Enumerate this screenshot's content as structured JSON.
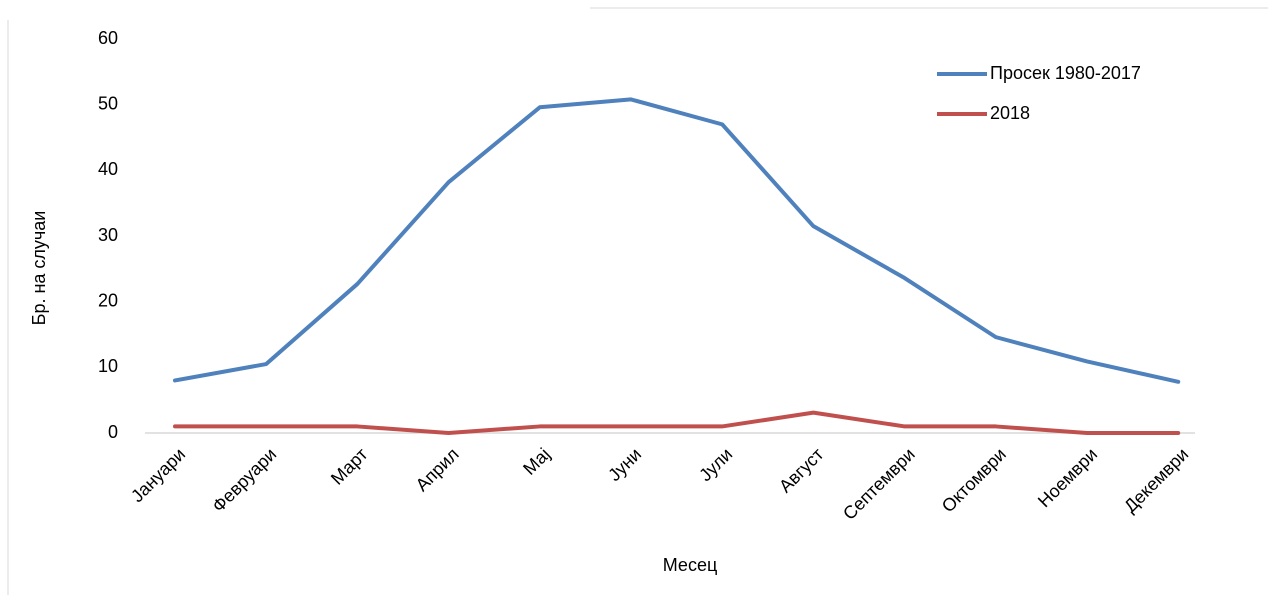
{
  "chart_data": {
    "type": "line",
    "x_label": "Месец",
    "y_label": "Бр. на случаи",
    "categories": [
      "Јануари",
      "Февруари",
      "Март",
      "Април",
      "Мај",
      "Јуни",
      "Јули",
      "Август",
      "Септември",
      "Октомври",
      "Ноември",
      "Декември"
    ],
    "series": [
      {
        "name": "Просек 1980-2017",
        "color": "#4f81bd",
        "values": [
          8,
          10.5,
          22.7,
          38.2,
          49.6,
          50.8,
          47,
          31.5,
          23.6,
          14.6,
          10.9,
          7.8
        ]
      },
      {
        "name": "2018",
        "color": "#c0504d",
        "values": [
          1,
          1,
          1,
          0,
          1,
          1,
          1,
          3.1,
          1,
          1,
          0,
          0
        ]
      }
    ],
    "ylim": [
      0,
      60
    ],
    "yticks": [
      0,
      10,
      20,
      30,
      40,
      50,
      60
    ],
    "grid": false,
    "legend": "top-right"
  }
}
